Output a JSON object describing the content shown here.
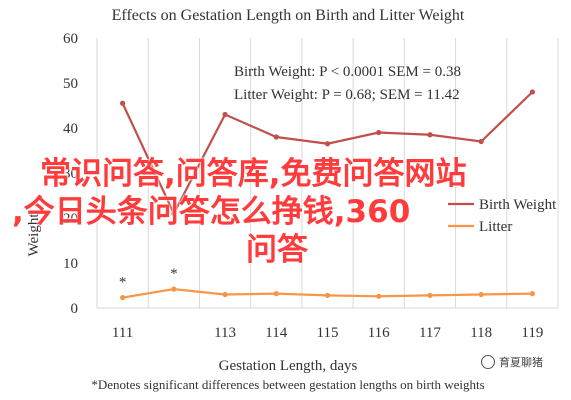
{
  "chart_data": {
    "type": "line",
    "title": "Effects on Gestation Length on Birth and Litter Weight",
    "xlabel": "Gestation Length, days",
    "ylabel": "Weight",
    "x": [
      111,
      112,
      113,
      114,
      115,
      116,
      117,
      118,
      119
    ],
    "x_ticks": [
      111,
      113,
      114,
      115,
      116,
      117,
      118,
      119
    ],
    "ylim": [
      0,
      60
    ],
    "y_ticks": [
      0,
      10,
      20,
      30,
      40,
      50,
      60
    ],
    "grid": "vertical",
    "series": [
      {
        "name": "Birth Weight",
        "color": "#c0504d",
        "values": [
          45.5,
          21.0,
          43.0,
          38.0,
          36.5,
          39.0,
          38.5,
          37.0,
          48.0
        ]
      },
      {
        "name": "Litter",
        "color": "#f79646",
        "values": [
          2.3,
          4.2,
          3.0,
          3.2,
          2.8,
          2.6,
          2.8,
          3.0,
          3.2
        ]
      }
    ],
    "significance_marks": [
      {
        "x": 111,
        "y": 2.3,
        "text": "*"
      },
      {
        "x": 112,
        "y": 4.2,
        "text": "*"
      }
    ],
    "legend": "center-right",
    "annotations": {
      "birth_line": "Birth Weight: P < 0.0001 SEM = 0.38",
      "litter_line": "Litter Weight: P = 0.68; SEM = 11.42"
    },
    "footnote": "*Denotes significant differences between gestation lengths on birth weights"
  },
  "watermark": {
    "line1": "常识问答,问答库,免费问答网站",
    "line2": ",今日头条问答怎么挣钱,360",
    "line3": "问答"
  },
  "badge": {
    "label": "育夏聊猪"
  }
}
